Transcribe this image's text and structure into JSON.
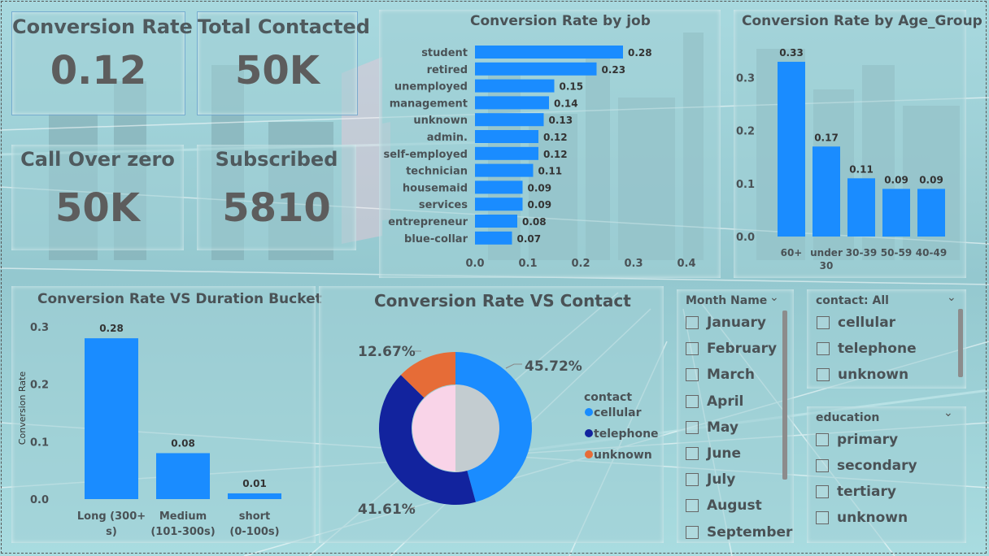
{
  "colors": {
    "accent": "#1a8cff",
    "telephone": "#12239e",
    "unknown": "#e66c37",
    "pink": "#f9d4e8"
  },
  "kpis": {
    "conversion_rate": {
      "label": "Conversion Rate",
      "value": "0.12"
    },
    "total_contacted": {
      "label": "Total Contacted",
      "value": "50K"
    },
    "call_over_zero": {
      "label": "Call Over zero",
      "value": "50K"
    },
    "subscribed": {
      "label": "Subscribed",
      "value": "5810"
    }
  },
  "chart_data": [
    {
      "type": "bar",
      "orientation": "horizontal",
      "title": "Conversion Rate by job",
      "categories": [
        "student",
        "retired",
        "unemployed",
        "management",
        "unknown",
        "admin.",
        "self-employed",
        "technician",
        "housemaid",
        "services",
        "entrepreneur",
        "blue-collar"
      ],
      "values": [
        0.28,
        0.23,
        0.15,
        0.14,
        0.13,
        0.12,
        0.12,
        0.11,
        0.09,
        0.09,
        0.08,
        0.07
      ],
      "xlim": [
        0,
        0.4
      ],
      "xticks": [
        "0.0",
        "0.1",
        "0.2",
        "0.3",
        "0.4"
      ]
    },
    {
      "type": "bar",
      "title": "Conversion Rate by Age_Group",
      "categories": [
        "60+",
        "under 30",
        "30-39",
        "50-59",
        "40-49"
      ],
      "values": [
        0.33,
        0.17,
        0.11,
        0.09,
        0.09
      ],
      "ylim": [
        0,
        0.35
      ],
      "yticks": [
        "0.0",
        "0.1",
        "0.2",
        "0.3"
      ]
    },
    {
      "type": "bar",
      "title": "Conversion Rate VS Duration Bucket",
      "ylabel": "Conversion Rate",
      "categories": [
        "Long (300+ s)",
        "Medium (101-300s)",
        "short (0-100s)"
      ],
      "values": [
        0.28,
        0.08,
        0.01
      ],
      "ylim": [
        0,
        0.3
      ],
      "yticks": [
        "0.0",
        "0.1",
        "0.2",
        "0.3"
      ]
    },
    {
      "type": "pie",
      "title": "Conversion Rate VS Contact",
      "legend_title": "contact",
      "labels": [
        "cellular",
        "telephone",
        "unknown"
      ],
      "values": [
        45.72,
        41.61,
        12.67
      ],
      "value_labels": [
        "45.72%",
        "41.61%",
        "12.67%"
      ]
    }
  ],
  "slicers": {
    "month": {
      "title": "Month Name",
      "items": [
        "January",
        "February",
        "March",
        "April",
        "May",
        "June",
        "July",
        "August",
        "September"
      ]
    },
    "contact": {
      "title": "contact: All",
      "items": [
        "cellular",
        "telephone",
        "unknown"
      ]
    },
    "education": {
      "title": "education",
      "items": [
        "primary",
        "secondary",
        "tertiary",
        "unknown"
      ]
    }
  },
  "icons": {
    "dropdown": "chevron-down-icon"
  }
}
